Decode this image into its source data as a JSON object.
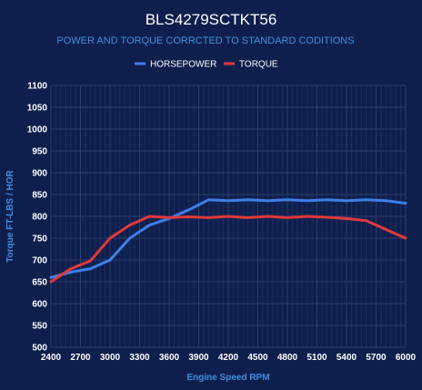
{
  "chart_data": {
    "type": "line",
    "title": "BLS4279SCTKT56",
    "subtitle": "POWER AND TORQUE CORRCTED TO STANDARD CODITIONS",
    "xlabel": "Engine Speed RPM",
    "ylabel": "Torque FT-LBS / HOR",
    "legend_position": "top-center",
    "grid": true,
    "xlim": [
      2400,
      6000
    ],
    "ylim": [
      500,
      1100
    ],
    "x_ticks": [
      2400,
      2700,
      3000,
      3300,
      3600,
      3900,
      4200,
      4500,
      4800,
      5100,
      5400,
      5700,
      6000
    ],
    "y_ticks": [
      500,
      550,
      600,
      650,
      700,
      750,
      800,
      850,
      900,
      950,
      1000,
      1050,
      1100
    ],
    "x": [
      2400,
      2600,
      2800,
      3000,
      3200,
      3400,
      3600,
      3800,
      4000,
      4200,
      4400,
      4600,
      4800,
      5000,
      5200,
      5400,
      5600,
      5800,
      6000
    ],
    "series": [
      {
        "name": "HORSEPOWER",
        "color": "#3f7fea",
        "values": [
          660,
          672,
          680,
          700,
          750,
          780,
          795,
          815,
          838,
          836,
          838,
          836,
          838,
          836,
          838,
          836,
          838,
          836,
          830
        ]
      },
      {
        "name": "TORQUE",
        "color": "#e0393c",
        "values": [
          650,
          680,
          698,
          750,
          780,
          800,
          797,
          799,
          797,
          800,
          797,
          800,
          797,
          800,
          798,
          795,
          790,
          770,
          750
        ]
      }
    ]
  },
  "colors": {
    "background": "#0f1f4d",
    "grid": "#2c3c6b",
    "minor_grid": "#1d2d5d",
    "accent": "#3f8fe0"
  }
}
